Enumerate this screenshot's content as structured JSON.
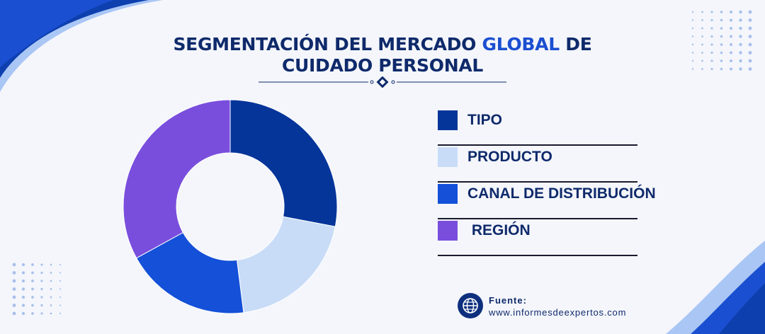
{
  "header": {
    "title_part1": "SEGMENTACIÓN DEL MERCADO ",
    "title_highlight": "GLOBAL",
    "title_part2": " DE CUIDADO PERSONAL"
  },
  "chart_data": {
    "type": "pie",
    "title": "SEGMENTACIÓN DEL MERCADO GLOBAL DE CUIDADO PERSONAL",
    "categories": [
      "TIPO",
      "PRODUCTO",
      "CANAL DE DISTRIBUCIÓN",
      "REGIÓN"
    ],
    "values": [
      28,
      20,
      19,
      33
    ],
    "colors": [
      "#06359a",
      "#c8dcf7",
      "#1450d8",
      "#7a4edd"
    ],
    "hole": true,
    "legend_position": "right"
  },
  "legend": {
    "items": [
      {
        "label": "TIPO"
      },
      {
        "label": "PRODUCTO"
      },
      {
        "label": "CANAL DE DISTRIBUCIÓN"
      },
      {
        "label": " REGIÓN"
      }
    ]
  },
  "source": {
    "label": "Fuente:",
    "url": "www.informesdeexpertos.com",
    "icon": "globe-icon"
  }
}
